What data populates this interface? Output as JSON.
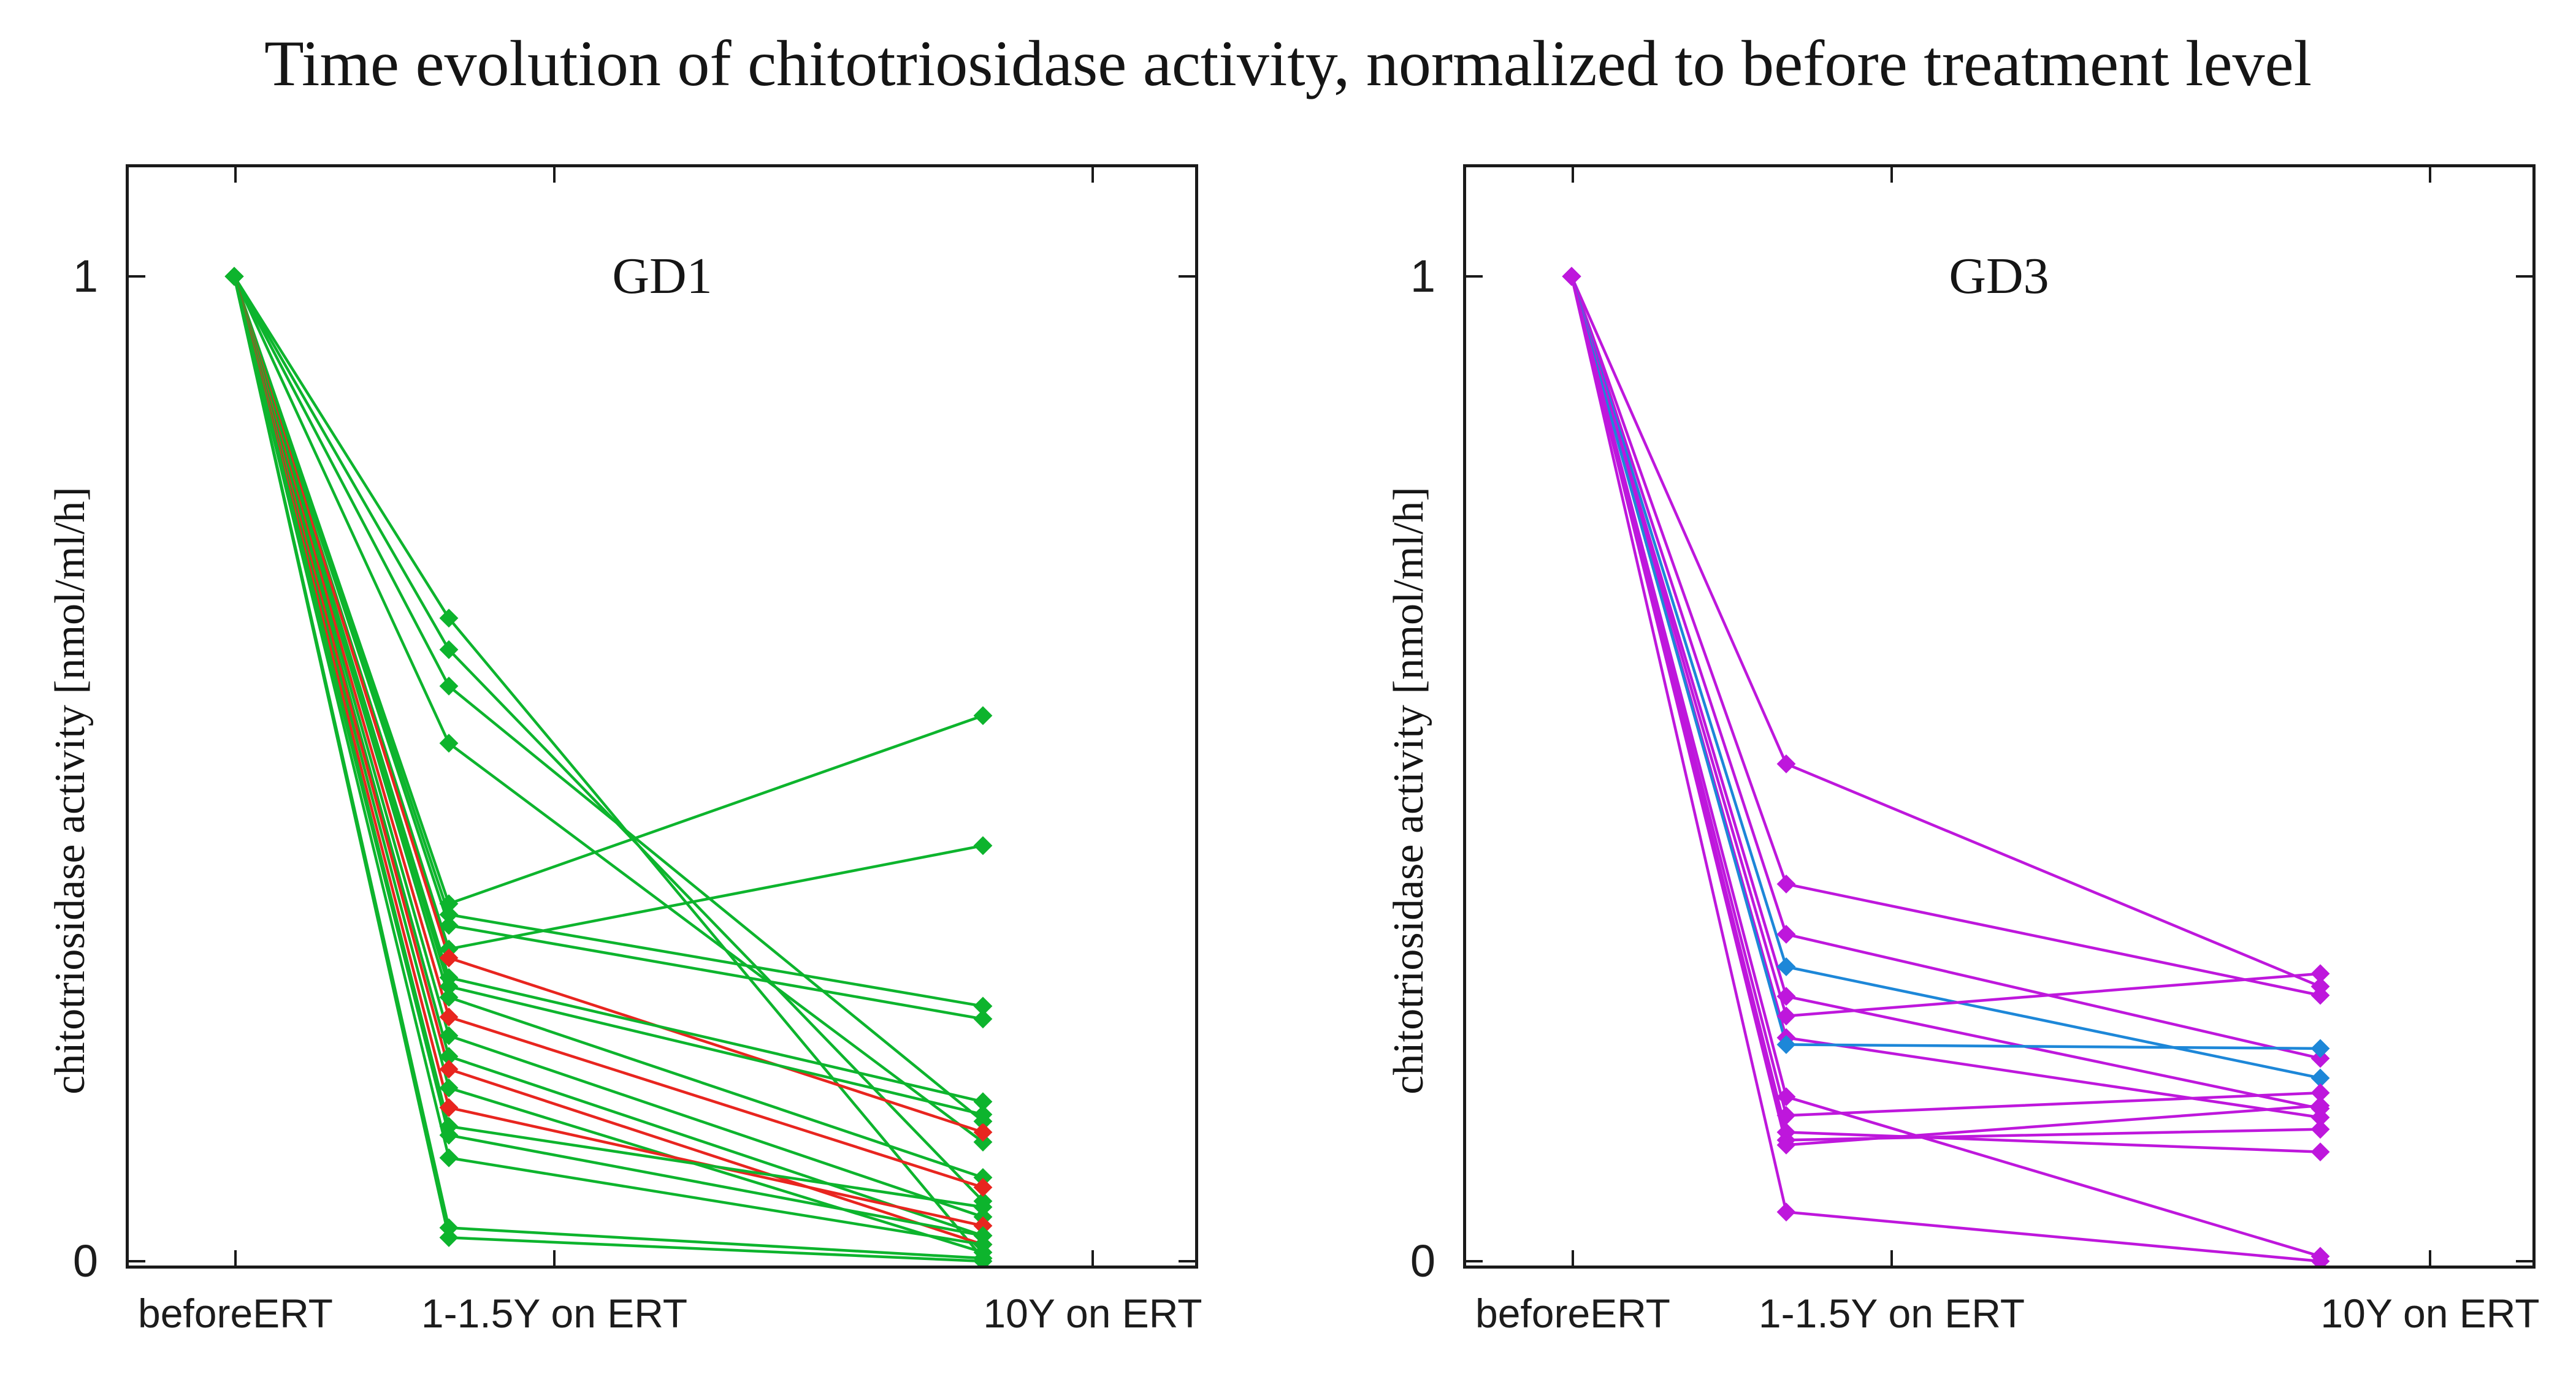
{
  "chart_data": {
    "type": "line",
    "title": "Time evolution of chitotriosidase activity, normalized to before treatment level",
    "ylabel": "chitotriosidase activity [nmol/ml/h]",
    "categories": [
      "beforeERT",
      "1-1.5Y on ERT",
      "10Y on ERT"
    ],
    "ytick_labels": [
      "1",
      "0"
    ],
    "ylim": [
      0,
      1.12
    ],
    "grid": false,
    "legend": "none",
    "marker": "diamond",
    "colors": {
      "green": "#0db42d",
      "red": "#e8251f",
      "magenta": "#be17dc",
      "blue": "#1d87d8",
      "frame": "#1a1a1a"
    },
    "panels": [
      {
        "label": "GD1",
        "series": [
          {
            "color": "green",
            "values": [
              1,
              0.653,
              0.003
            ]
          },
          {
            "color": "green",
            "values": [
              1,
              0.621,
              0.061
            ]
          },
          {
            "color": "green",
            "values": [
              1,
              0.584,
              0.142
            ]
          },
          {
            "color": "green",
            "values": [
              1,
              0.526,
              0.121
            ]
          },
          {
            "color": "green",
            "values": [
              1,
              0.363,
              0.554
            ]
          },
          {
            "color": "green",
            "values": [
              1,
              0.352,
              0.259
            ]
          },
          {
            "color": "green",
            "values": [
              1,
              0.341,
              0.246
            ]
          },
          {
            "color": "green",
            "values": [
              1,
              0.317,
              0.422
            ]
          },
          {
            "color": "red",
            "values": [
              1,
              0.308,
              0.131
            ]
          },
          {
            "color": "green",
            "values": [
              1,
              0.288,
              0.162
            ]
          },
          {
            "color": "green",
            "values": [
              1,
              0.279,
              0.149
            ]
          },
          {
            "color": "green",
            "values": [
              1,
              0.268,
              0.085
            ]
          },
          {
            "color": "red",
            "values": [
              1,
              0.248,
              0.075
            ]
          },
          {
            "color": "green",
            "values": [
              1,
              0.229,
              0.045
            ]
          },
          {
            "color": "green",
            "values": [
              1,
              0.208,
              0.026
            ]
          },
          {
            "color": "red",
            "values": [
              1,
              0.195,
              0.017
            ]
          },
          {
            "color": "green",
            "values": [
              1,
              0.176,
              0.009
            ]
          },
          {
            "color": "red",
            "values": [
              1,
              0.156,
              0.036
            ]
          },
          {
            "color": "green",
            "values": [
              1,
              0.137,
              0.055
            ]
          },
          {
            "color": "green",
            "values": [
              1,
              0.128,
              0.026
            ]
          },
          {
            "color": "green",
            "values": [
              1,
              0.105,
              0.017
            ]
          },
          {
            "color": "green",
            "values": [
              1,
              0.034,
              0.003
            ]
          },
          {
            "color": "green",
            "values": [
              1,
              0.024,
              0.0
            ]
          }
        ]
      },
      {
        "label": "GD3",
        "series": [
          {
            "color": "magenta",
            "values": [
              1,
              0.505,
              0.279
            ]
          },
          {
            "color": "magenta",
            "values": [
              1,
              0.383,
              0.27
            ]
          },
          {
            "color": "magenta",
            "values": [
              1,
              0.332,
              0.206
            ]
          },
          {
            "color": "blue",
            "values": [
              1,
              0.299,
              0.186
            ]
          },
          {
            "color": "magenta",
            "values": [
              1,
              0.269,
              0.155
            ]
          },
          {
            "color": "magenta",
            "values": [
              1,
              0.249,
              0.292
            ]
          },
          {
            "color": "magenta",
            "values": [
              1,
              0.227,
              0.146
            ]
          },
          {
            "color": "blue",
            "values": [
              1,
              0.22,
              0.216
            ]
          },
          {
            "color": "magenta",
            "values": [
              1,
              0.167,
              0.005
            ]
          },
          {
            "color": "magenta",
            "values": [
              1,
              0.148,
              0.171
            ]
          },
          {
            "color": "magenta",
            "values": [
              1,
              0.131,
              0.111
            ]
          },
          {
            "color": "magenta",
            "values": [
              1,
              0.123,
              0.134
            ]
          },
          {
            "color": "magenta",
            "values": [
              1,
              0.118,
              0.158
            ]
          },
          {
            "color": "magenta",
            "values": [
              1,
              0.05,
              0.0
            ]
          }
        ]
      }
    ]
  }
}
